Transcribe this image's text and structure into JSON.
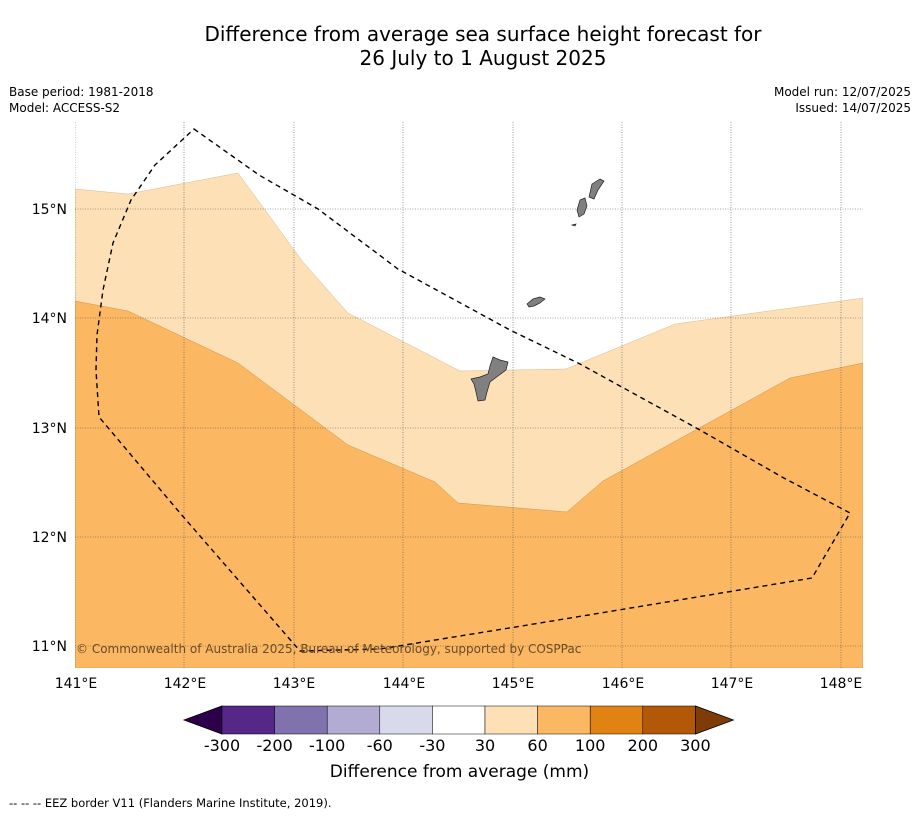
{
  "title_line1": "Difference from average sea surface height forecast for",
  "title_line2": "26 July to 1 August 2025",
  "meta_left": [
    "Base period: 1981-2018",
    "Model: ACCESS-S2"
  ],
  "meta_right": [
    "Model run: 12/07/2025",
    "Issued: 14/07/2025"
  ],
  "copyright": "© Commonwealth of Australia 2025, Bureau of Meteorology, supported by COSPPac",
  "lat_labels": [
    "15°N",
    "14°N",
    "13°N",
    "12°N",
    "11°N"
  ],
  "lon_labels": [
    "141°E",
    "142°E",
    "143°E",
    "144°E",
    "145°E",
    "146°E",
    "147°E",
    "148°E"
  ],
  "colorbar": {
    "label": "Difference from average (mm)",
    "ticks": [
      "-300",
      "-200",
      "-100",
      "-60",
      "-30",
      "30",
      "60",
      "100",
      "200",
      "300"
    ],
    "colors": [
      "#2d004b",
      "#542788",
      "#8073ac",
      "#b2abd2",
      "#d8daeb",
      "#ffffff",
      "#fde0b6",
      "#fbb761",
      "#e08214",
      "#b35806",
      "#7f3b08"
    ]
  },
  "footnote": "-- -- -- EEZ border V11 (Flanders Marine Institute, 2019).",
  "map": {
    "land_color": "#808080",
    "band_30_60": "#fde0b6",
    "band_60_100": "#fbb761"
  }
}
